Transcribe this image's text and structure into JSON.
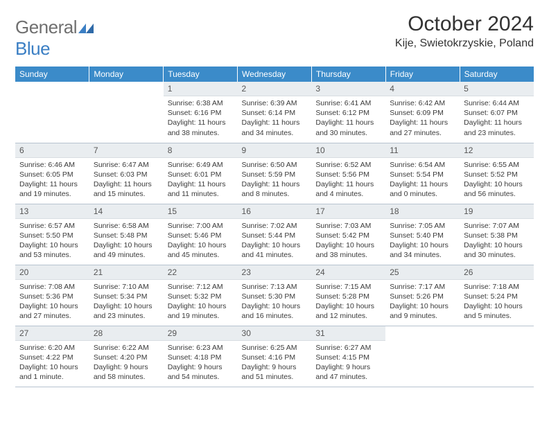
{
  "brand": {
    "general": "General",
    "blue": "Blue"
  },
  "title": "October 2024",
  "location": "Kije, Swietokrzyskie, Poland",
  "colors": {
    "header_bg": "#3b8bc9",
    "header_text": "#ffffff",
    "daynum_bg": "#e9edf0",
    "body_text": "#3a3a3a",
    "rule": "#b7c3cf",
    "logo_gray": "#6f6f6f",
    "logo_blue": "#3b7fc4"
  },
  "dow": [
    "Sunday",
    "Monday",
    "Tuesday",
    "Wednesday",
    "Thursday",
    "Friday",
    "Saturday"
  ],
  "weeks": [
    [
      null,
      null,
      {
        "n": "1",
        "sr": "6:38 AM",
        "ss": "6:16 PM",
        "dl": "11 hours and 38 minutes."
      },
      {
        "n": "2",
        "sr": "6:39 AM",
        "ss": "6:14 PM",
        "dl": "11 hours and 34 minutes."
      },
      {
        "n": "3",
        "sr": "6:41 AM",
        "ss": "6:12 PM",
        "dl": "11 hours and 30 minutes."
      },
      {
        "n": "4",
        "sr": "6:42 AM",
        "ss": "6:09 PM",
        "dl": "11 hours and 27 minutes."
      },
      {
        "n": "5",
        "sr": "6:44 AM",
        "ss": "6:07 PM",
        "dl": "11 hours and 23 minutes."
      }
    ],
    [
      {
        "n": "6",
        "sr": "6:46 AM",
        "ss": "6:05 PM",
        "dl": "11 hours and 19 minutes."
      },
      {
        "n": "7",
        "sr": "6:47 AM",
        "ss": "6:03 PM",
        "dl": "11 hours and 15 minutes."
      },
      {
        "n": "8",
        "sr": "6:49 AM",
        "ss": "6:01 PM",
        "dl": "11 hours and 11 minutes."
      },
      {
        "n": "9",
        "sr": "6:50 AM",
        "ss": "5:59 PM",
        "dl": "11 hours and 8 minutes."
      },
      {
        "n": "10",
        "sr": "6:52 AM",
        "ss": "5:56 PM",
        "dl": "11 hours and 4 minutes."
      },
      {
        "n": "11",
        "sr": "6:54 AM",
        "ss": "5:54 PM",
        "dl": "11 hours and 0 minutes."
      },
      {
        "n": "12",
        "sr": "6:55 AM",
        "ss": "5:52 PM",
        "dl": "10 hours and 56 minutes."
      }
    ],
    [
      {
        "n": "13",
        "sr": "6:57 AM",
        "ss": "5:50 PM",
        "dl": "10 hours and 53 minutes."
      },
      {
        "n": "14",
        "sr": "6:58 AM",
        "ss": "5:48 PM",
        "dl": "10 hours and 49 minutes."
      },
      {
        "n": "15",
        "sr": "7:00 AM",
        "ss": "5:46 PM",
        "dl": "10 hours and 45 minutes."
      },
      {
        "n": "16",
        "sr": "7:02 AM",
        "ss": "5:44 PM",
        "dl": "10 hours and 41 minutes."
      },
      {
        "n": "17",
        "sr": "7:03 AM",
        "ss": "5:42 PM",
        "dl": "10 hours and 38 minutes."
      },
      {
        "n": "18",
        "sr": "7:05 AM",
        "ss": "5:40 PM",
        "dl": "10 hours and 34 minutes."
      },
      {
        "n": "19",
        "sr": "7:07 AM",
        "ss": "5:38 PM",
        "dl": "10 hours and 30 minutes."
      }
    ],
    [
      {
        "n": "20",
        "sr": "7:08 AM",
        "ss": "5:36 PM",
        "dl": "10 hours and 27 minutes."
      },
      {
        "n": "21",
        "sr": "7:10 AM",
        "ss": "5:34 PM",
        "dl": "10 hours and 23 minutes."
      },
      {
        "n": "22",
        "sr": "7:12 AM",
        "ss": "5:32 PM",
        "dl": "10 hours and 19 minutes."
      },
      {
        "n": "23",
        "sr": "7:13 AM",
        "ss": "5:30 PM",
        "dl": "10 hours and 16 minutes."
      },
      {
        "n": "24",
        "sr": "7:15 AM",
        "ss": "5:28 PM",
        "dl": "10 hours and 12 minutes."
      },
      {
        "n": "25",
        "sr": "7:17 AM",
        "ss": "5:26 PM",
        "dl": "10 hours and 9 minutes."
      },
      {
        "n": "26",
        "sr": "7:18 AM",
        "ss": "5:24 PM",
        "dl": "10 hours and 5 minutes."
      }
    ],
    [
      {
        "n": "27",
        "sr": "6:20 AM",
        "ss": "4:22 PM",
        "dl": "10 hours and 1 minute."
      },
      {
        "n": "28",
        "sr": "6:22 AM",
        "ss": "4:20 PM",
        "dl": "9 hours and 58 minutes."
      },
      {
        "n": "29",
        "sr": "6:23 AM",
        "ss": "4:18 PM",
        "dl": "9 hours and 54 minutes."
      },
      {
        "n": "30",
        "sr": "6:25 AM",
        "ss": "4:16 PM",
        "dl": "9 hours and 51 minutes."
      },
      {
        "n": "31",
        "sr": "6:27 AM",
        "ss": "4:15 PM",
        "dl": "9 hours and 47 minutes."
      },
      null,
      null
    ]
  ],
  "labels": {
    "sunrise": "Sunrise:",
    "sunset": "Sunset:",
    "daylight": "Daylight:"
  }
}
